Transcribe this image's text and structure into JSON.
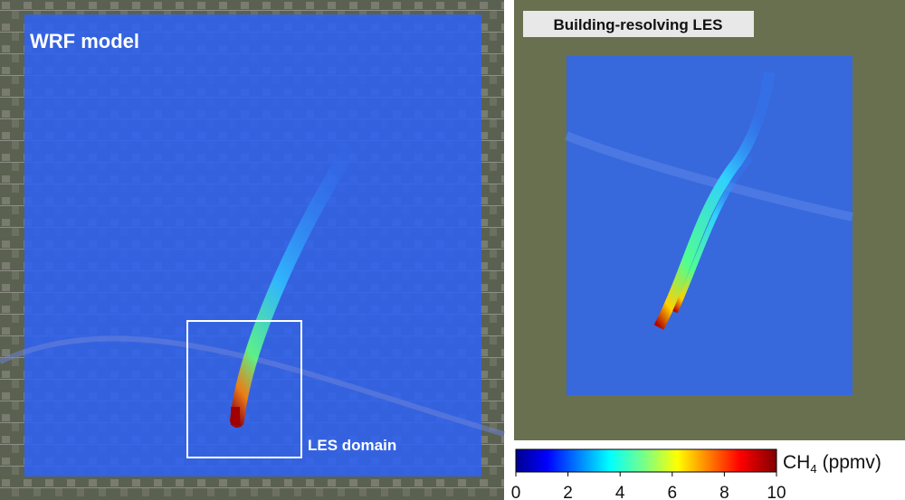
{
  "panels": [
    {
      "title": "WRF model",
      "annotation": "LES domain"
    },
    {
      "title": "Building-resolving LES"
    }
  ],
  "colorbar": {
    "label": "CH",
    "label_subscript": "4",
    "label_unit": "(ppmv)",
    "lim": [
      0,
      10
    ],
    "ticks": [
      0,
      2,
      4,
      6,
      8,
      10
    ]
  }
}
